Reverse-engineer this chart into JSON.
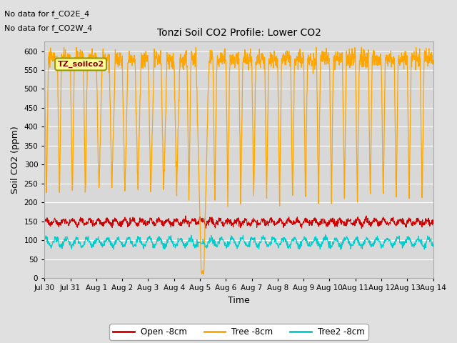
{
  "title": "Tonzi Soil CO2 Profile: Lower CO2",
  "xlabel": "Time",
  "ylabel": "Soil CO2 (ppm)",
  "ylim": [
    0,
    625
  ],
  "yticks": [
    0,
    50,
    100,
    150,
    200,
    250,
    300,
    350,
    400,
    450,
    500,
    550,
    600
  ],
  "bg_color": "#e0e0e0",
  "plot_bg_color": "#d8d8d8",
  "annotations": [
    "No data for f_CO2E_4",
    "No data for f_CO2W_4"
  ],
  "legend_box_label": "TZ_soilco2",
  "legend_box_color": "#ffff99",
  "legend_box_border": "#999900",
  "open_color": "#cc0000",
  "tree_color": "#ffa500",
  "tree2_color": "#00cccc",
  "open_label": "Open -8cm",
  "tree_label": "Tree -8cm",
  "tree2_label": "Tree2 -8cm",
  "x_tick_labels": [
    "Jul 30",
    "Jul 31",
    "Aug 1",
    "Aug 2",
    "Aug 3",
    "Aug 4",
    "Aug 5",
    "Aug 6",
    "Aug 7",
    "Aug 8",
    "Aug 9",
    "Aug 10",
    "Aug 11",
    "Aug 12",
    "Aug 13",
    "Aug 14"
  ],
  "n_points": 1500
}
